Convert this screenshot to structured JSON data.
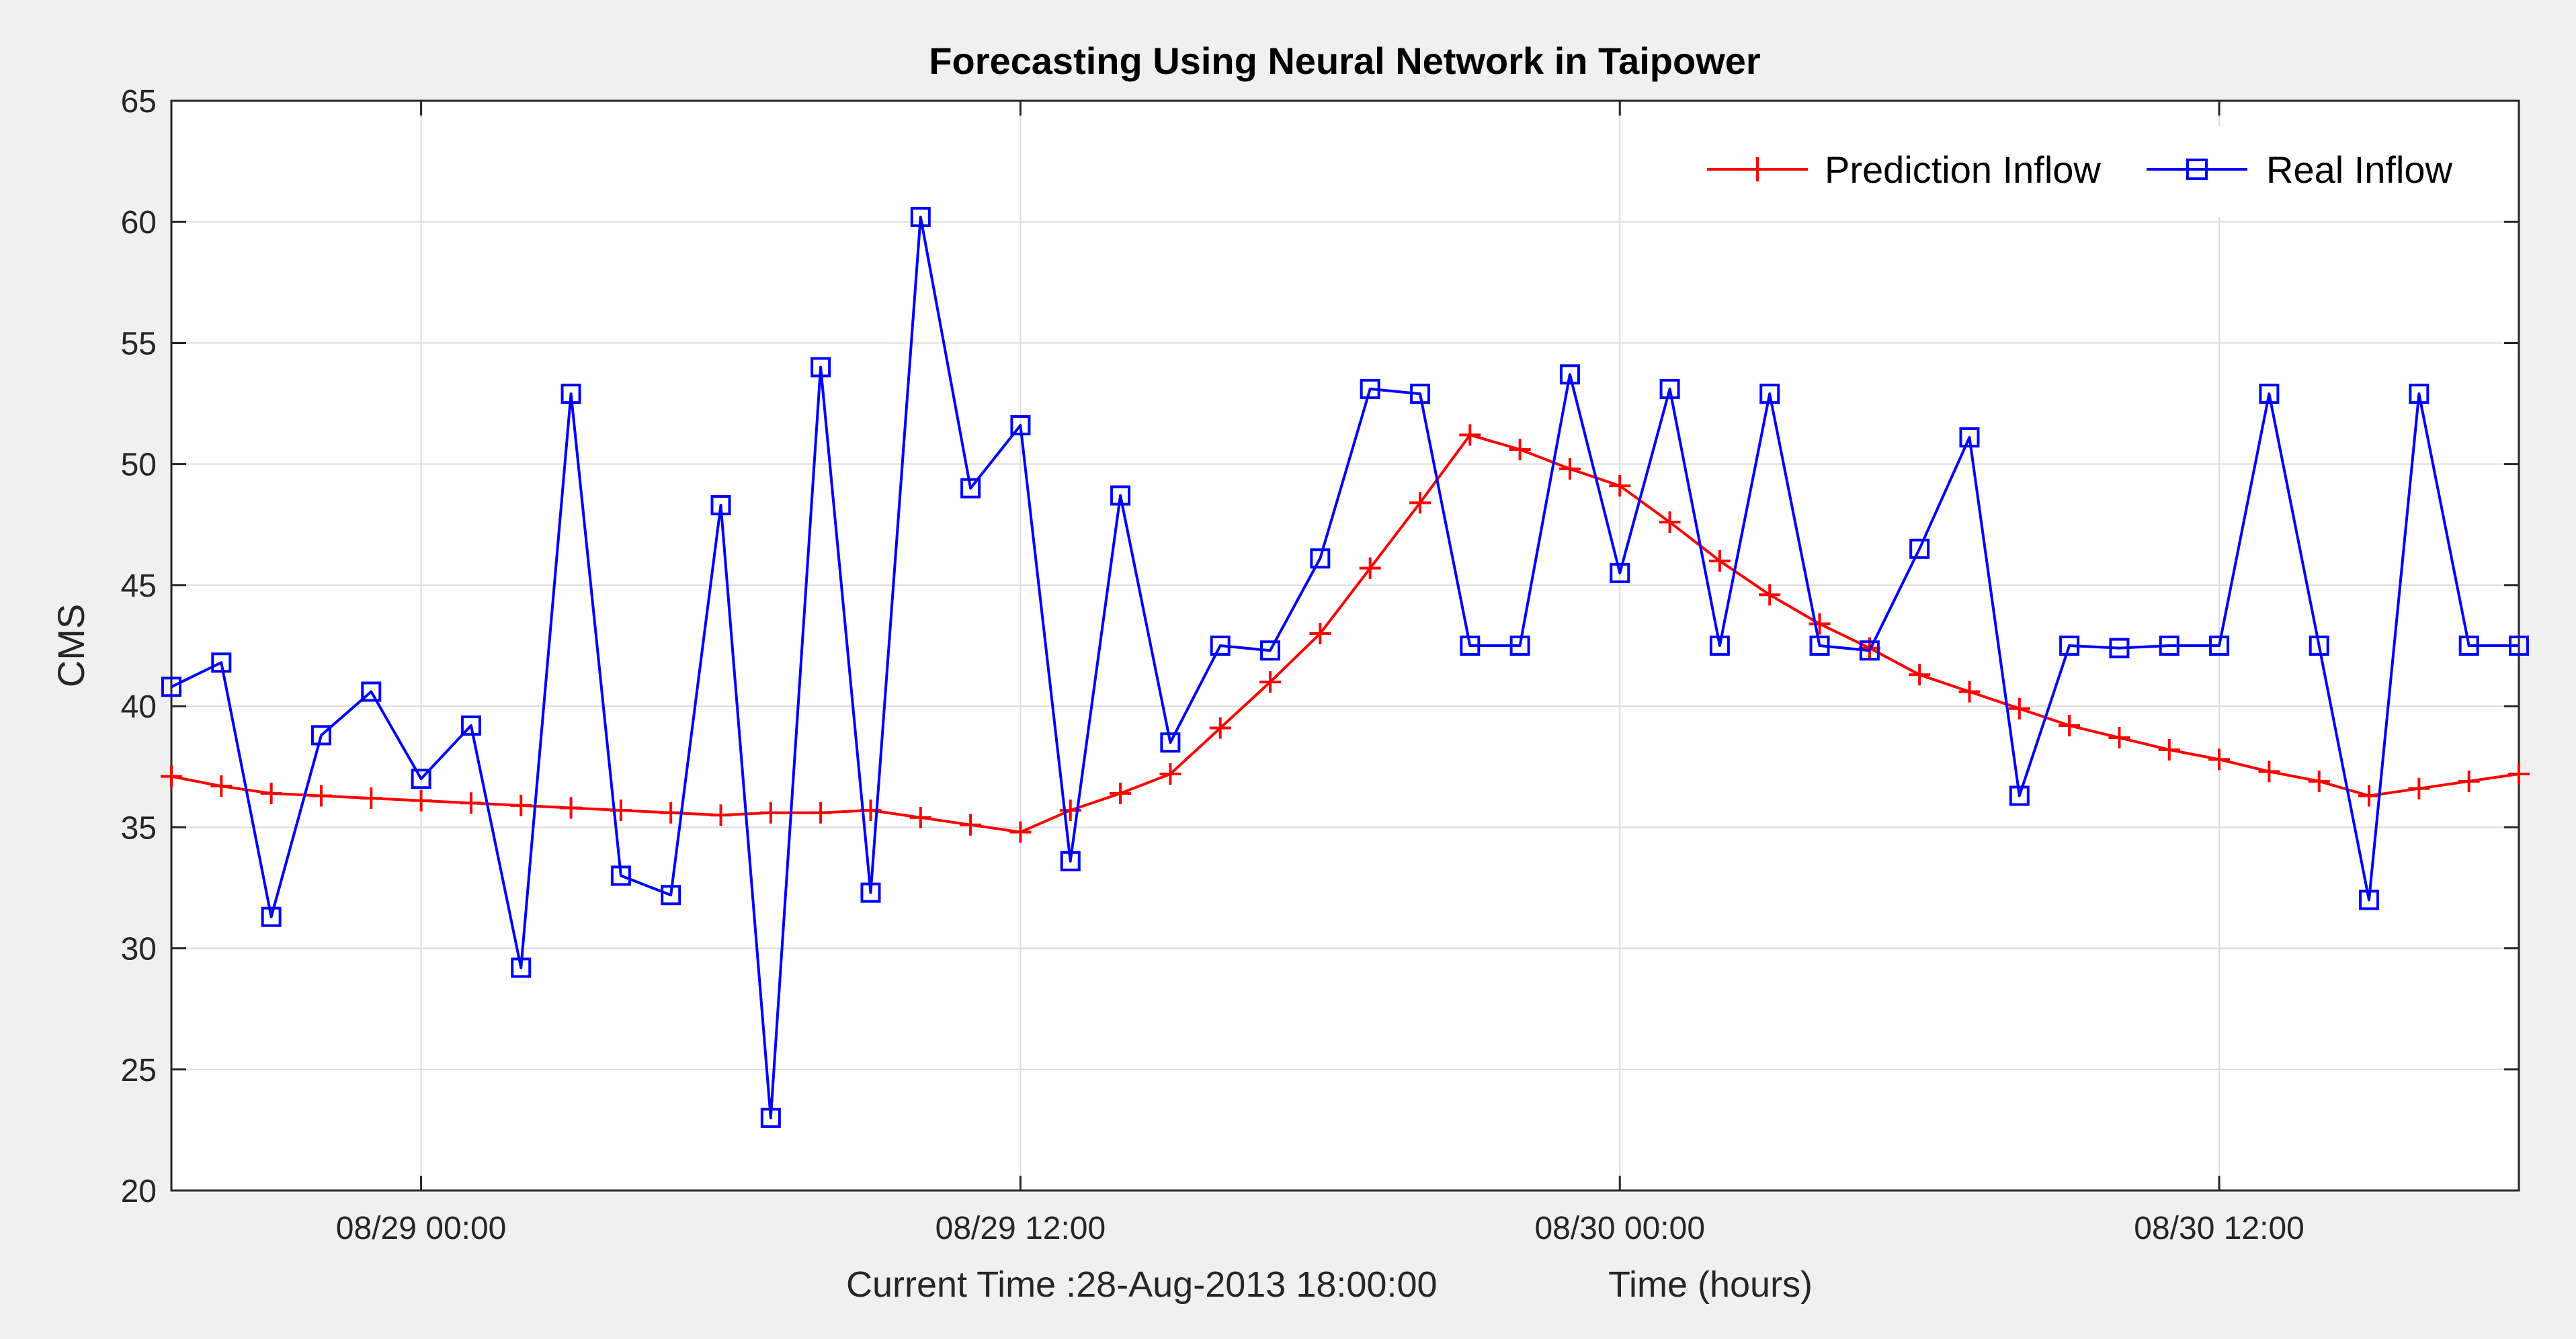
{
  "chart_data": {
    "type": "line",
    "title": "Forecasting Using Neural Network in Taipower",
    "xlabel": "Time (hours)",
    "ylabel": "CMS",
    "subtitle": "Current Time :28-Aug-2013 18:00:00",
    "x_start": "2013-08-28 19:00",
    "x_end": "2013-08-30 18:00",
    "x_step_hours": 1,
    "xlim": [
      "2013-08-28 19:00",
      "2013-08-30 18:00"
    ],
    "ylim": [
      20,
      65
    ],
    "yticks": [
      20,
      25,
      30,
      35,
      40,
      45,
      50,
      55,
      60,
      65
    ],
    "xticks": [
      {
        "at": "2013-08-29 00:00",
        "label": "08/29 00:00"
      },
      {
        "at": "2013-08-29 12:00",
        "label": "08/29 12:00"
      },
      {
        "at": "2013-08-30 00:00",
        "label": "08/30 00:00"
      },
      {
        "at": "2013-08-30 12:00",
        "label": "08/30 12:00"
      }
    ],
    "grid": true,
    "legend": "top-right",
    "series": [
      {
        "name": "Prediction Inflow",
        "color": "#ff0000",
        "marker": "plus",
        "values": [
          37.1,
          36.7,
          36.4,
          36.3,
          36.2,
          36.1,
          36.0,
          35.9,
          35.8,
          35.7,
          35.6,
          35.5,
          35.6,
          35.6,
          35.7,
          35.4,
          35.1,
          34.8,
          35.7,
          36.4,
          37.2,
          39.1,
          41.0,
          43.0,
          45.7,
          48.4,
          51.2,
          50.6,
          49.8,
          49.1,
          47.6,
          46.0,
          44.6,
          43.4,
          42.4,
          41.3,
          40.6,
          39.9,
          39.2,
          38.7,
          38.2,
          37.8,
          37.3,
          36.9,
          36.3,
          36.6,
          36.9,
          37.2
        ]
      },
      {
        "name": "Real Inflow",
        "color": "#0000ff",
        "marker": "square",
        "values": [
          40.8,
          41.8,
          31.3,
          38.8,
          40.6,
          37.0,
          39.2,
          29.2,
          52.9,
          33.0,
          32.2,
          48.3,
          23.0,
          54.0,
          32.3,
          60.2,
          49.0,
          51.6,
          33.6,
          48.7,
          38.5,
          42.5,
          42.3,
          46.1,
          53.1,
          52.9,
          42.5,
          42.5,
          53.7,
          45.5,
          53.1,
          42.5,
          52.9,
          42.5,
          42.3,
          46.5,
          51.1,
          36.3,
          42.5,
          42.4,
          42.5,
          42.5,
          52.9,
          42.5,
          32.0,
          52.9,
          42.5,
          42.5
        ]
      }
    ]
  }
}
